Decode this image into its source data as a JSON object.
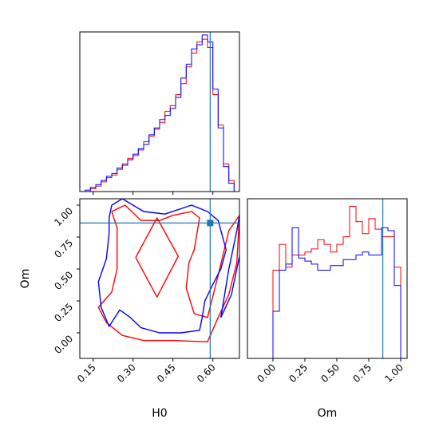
{
  "chart_data": {
    "type": "corner",
    "parameters": [
      "H0",
      "Om"
    ],
    "truth": {
      "H0": 0.59,
      "Om": 0.86
    },
    "colors": {
      "series_a": "#ff0000",
      "series_b": "#0000ff",
      "truth": "#1f77b4",
      "axes": "#000000"
    },
    "panels": {
      "h0_hist": {
        "type": "step-histogram",
        "xlim": [
          0.1,
          0.7
        ],
        "bin_edges": [
          0.1,
          0.12,
          0.14,
          0.16,
          0.18,
          0.2,
          0.22,
          0.24,
          0.26,
          0.28,
          0.3,
          0.32,
          0.34,
          0.36,
          0.38,
          0.4,
          0.42,
          0.44,
          0.46,
          0.48,
          0.5,
          0.52,
          0.54,
          0.56,
          0.58,
          0.6,
          0.62,
          0.64,
          0.66,
          0.68,
          0.7
        ],
        "series": [
          {
            "color_key": "series_a",
            "values": [
              0,
              0,
              2,
              4,
              7,
              10,
              12,
              16,
              20,
              24,
              26,
              30,
              36,
              40,
              45,
              50,
              58,
              62,
              70,
              78,
              90,
              100,
              108,
              110,
              104,
              70,
              48,
              20,
              8,
              0
            ]
          },
          {
            "color_key": "series_b",
            "values": [
              0,
              1,
              3,
              5,
              8,
              11,
              13,
              17,
              19,
              23,
              27,
              31,
              34,
              41,
              46,
              52,
              55,
              60,
              68,
              82,
              92,
              103,
              106,
              113,
              108,
              74,
              46,
              18,
              6,
              0
            ]
          }
        ]
      },
      "joint": {
        "type": "contour",
        "xlim": [
          0.1,
          0.7
        ],
        "ylim": [
          -0.2,
          1.05
        ],
        "xticks": [
          0.15,
          0.3,
          0.45,
          0.6
        ],
        "yticks": [
          0.0,
          0.25,
          0.5,
          0.75,
          1.0
        ],
        "xtick_labels": [
          "0.15",
          "0.30",
          "0.45",
          "0.60"
        ],
        "ytick_labels": [
          "0.00",
          "0.25",
          "0.50",
          "0.75",
          "1.00"
        ],
        "xlabel": "H0",
        "ylabel": "Om",
        "contours": [
          {
            "color_key": "series_a",
            "points": [
              [
                0.22,
                0.95
              ],
              [
                0.27,
                1.0
              ],
              [
                0.33,
                0.88
              ],
              [
                0.4,
                0.88
              ],
              [
                0.45,
                0.92
              ],
              [
                0.52,
                0.95
              ],
              [
                0.55,
                0.9
              ],
              [
                0.53,
                0.65
              ],
              [
                0.51,
                0.55
              ],
              [
                0.5,
                0.35
              ],
              [
                0.53,
                0.15
              ],
              [
                0.58,
                0.12
              ],
              [
                0.62,
                0.45
              ],
              [
                0.66,
                0.8
              ],
              [
                0.7,
                0.92
              ],
              [
                0.69,
                0.55
              ],
              [
                0.66,
                0.3
              ],
              [
                0.62,
                0.12
              ],
              [
                0.58,
                -0.07
              ],
              [
                0.45,
                -0.06
              ],
              [
                0.34,
                -0.06
              ],
              [
                0.26,
                -0.02
              ],
              [
                0.2,
                0.08
              ],
              [
                0.17,
                0.2
              ],
              [
                0.22,
                0.32
              ],
              [
                0.24,
                0.5
              ],
              [
                0.24,
                0.68
              ],
              [
                0.24,
                0.82
              ],
              [
                0.22,
                0.95
              ]
            ]
          },
          {
            "color_key": "series_a",
            "points": [
              [
                0.31,
                0.59
              ],
              [
                0.39,
                0.9
              ],
              [
                0.47,
                0.6
              ],
              [
                0.39,
                0.28
              ],
              [
                0.31,
                0.59
              ]
            ]
          },
          {
            "color_key": "series_b",
            "points": [
              [
                0.22,
                1.0
              ],
              [
                0.26,
                1.05
              ],
              [
                0.34,
                0.95
              ],
              [
                0.42,
                0.93
              ],
              [
                0.52,
                1.0
              ],
              [
                0.58,
                0.95
              ],
              [
                0.62,
                0.88
              ],
              [
                0.65,
                0.65
              ],
              [
                0.63,
                0.5
              ],
              [
                0.6,
                0.38
              ],
              [
                0.57,
                0.25
              ],
              [
                0.56,
                0.12
              ],
              [
                0.55,
                0.02
              ],
              [
                0.48,
                0.0
              ],
              [
                0.4,
                0.0
              ],
              [
                0.33,
                0.04
              ],
              [
                0.29,
                0.12
              ],
              [
                0.25,
                0.18
              ],
              [
                0.21,
                0.05
              ],
              [
                0.18,
                0.2
              ],
              [
                0.17,
                0.4
              ],
              [
                0.2,
                0.58
              ],
              [
                0.21,
                0.78
              ],
              [
                0.21,
                0.9
              ],
              [
                0.22,
                1.0
              ]
            ]
          },
          {
            "color_key": "series_b",
            "points": [
              [
                0.63,
                0.12
              ],
              [
                0.66,
                0.5
              ],
              [
                0.69,
                0.8
              ],
              [
                0.7,
                0.92
              ],
              [
                0.71,
                0.92
              ],
              [
                0.7,
                0.6
              ],
              [
                0.67,
                0.3
              ],
              [
                0.63,
                0.12
              ]
            ]
          }
        ]
      },
      "om_hist": {
        "type": "step-histogram",
        "xlim": [
          -0.2,
          1.05
        ],
        "xticks": [
          0.0,
          0.25,
          0.5,
          0.75,
          1.0
        ],
        "xtick_labels": [
          "0.00",
          "0.25",
          "0.50",
          "0.75",
          "1.00"
        ],
        "xlabel": "Om",
        "bin_edges": [
          -0.2,
          -0.15,
          -0.1,
          -0.05,
          0.0,
          0.05,
          0.1,
          0.15,
          0.2,
          0.25,
          0.3,
          0.35,
          0.4,
          0.45,
          0.5,
          0.55,
          0.6,
          0.65,
          0.7,
          0.75,
          0.8,
          0.85,
          0.9,
          0.95,
          1.0,
          1.05
        ],
        "series": [
          {
            "color_key": "series_a",
            "values": [
              0,
              0,
              0,
              0,
              58,
              75,
              60,
              68,
              68,
              70,
              72,
              78,
              75,
              70,
              75,
              80,
              100,
              90,
              82,
              92,
              85,
              80,
              80,
              60,
              0
            ]
          },
          {
            "color_key": "series_b",
            "values": [
              0,
              0,
              0,
              0,
              31,
              58,
              62,
              86,
              66,
              64,
              62,
              58,
              58,
              61,
              61,
              65,
              65,
              68,
              70,
              68,
              68,
              86,
              84,
              48,
              0
            ]
          }
        ]
      }
    }
  }
}
